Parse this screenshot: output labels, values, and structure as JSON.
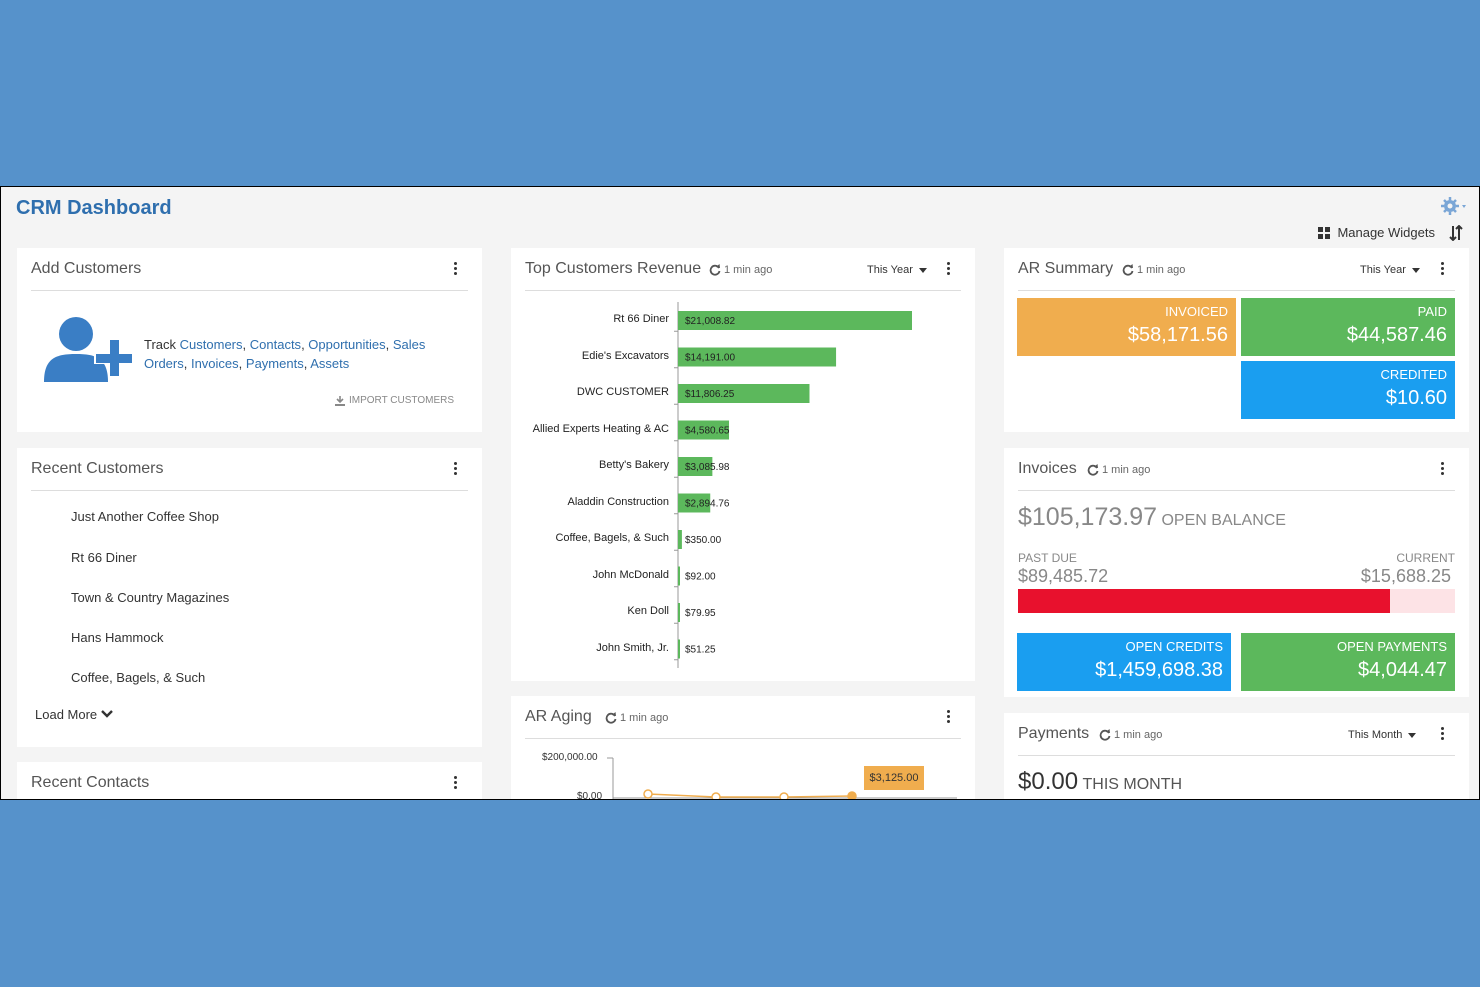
{
  "app": {
    "title": "CRM Dashboard",
    "manage_widgets": "Manage Widgets"
  },
  "colors": {
    "accent": "#2f6fae",
    "bg": "#5692cb",
    "bar_green": "#5cb85c",
    "orange": "#f0ad4e",
    "blue": "#1a9ef0",
    "red": "#e8112d"
  },
  "add_customers": {
    "title": "Add Customers",
    "track_word": "Track",
    "links": [
      "Customers",
      "Contacts",
      "Opportunities",
      "Sales Orders",
      "Invoices",
      "Payments",
      "Assets"
    ],
    "import_label": "IMPORT CUSTOMERS"
  },
  "recent_customers": {
    "title": "Recent Customers",
    "items": [
      "Just Another Coffee Shop",
      "Rt 66 Diner",
      "Town & Country Magazines",
      "Hans Hammock",
      "Coffee, Bagels, & Such"
    ],
    "load_more": "Load More"
  },
  "recent_contacts": {
    "title": "Recent Contacts"
  },
  "top_customers": {
    "title": "Top Customers Revenue",
    "refresh": "1 min ago",
    "period": "This Year"
  },
  "chart_data": {
    "type": "bar",
    "orientation": "horizontal",
    "categories": [
      "Rt 66 Diner",
      "Edie's Excavators",
      "DWC CUSTOMER",
      "Allied Experts Heating & AC",
      "Betty's Bakery",
      "Aladdin Construction",
      "Coffee, Bagels, & Such",
      "John McDonald",
      "Ken Doll",
      "John Smith, Jr."
    ],
    "values": [
      21008.82,
      14191.0,
      11806.25,
      4580.65,
      3085.98,
      2894.76,
      350.0,
      92.0,
      79.95,
      51.25
    ],
    "labels": [
      "$21,008.82",
      "$14,191.00",
      "$11,806.25",
      "$4,580.65",
      "$3,085.98",
      "$2,894.76",
      "$350.00",
      "$92.00",
      "$79.95",
      "$51.25"
    ],
    "xlim": [
      0,
      21008.82
    ]
  },
  "ar_aging": {
    "title": "AR Aging",
    "refresh": "1 min ago",
    "y_ticks": [
      "$200,000.00",
      "$0.00"
    ],
    "tooltip": "$3,125.00"
  },
  "ar_summary": {
    "title": "AR Summary",
    "refresh": "1 min ago",
    "period": "This Year",
    "invoiced_label": "INVOICED",
    "invoiced_value": "$58,171.56",
    "paid_label": "PAID",
    "paid_value": "$44,587.46",
    "credited_label": "CREDITED",
    "credited_value": "$10.60"
  },
  "invoices": {
    "title": "Invoices",
    "refresh": "1 min ago",
    "open_balance": "$105,173.97",
    "open_balance_label": "OPEN BALANCE",
    "past_due_label": "PAST DUE",
    "past_due_value": "$89,485.72",
    "current_label": "CURRENT",
    "current_value": "$15,688.25",
    "past_due_fraction": 0.851,
    "open_credits_label": "OPEN CREDITS",
    "open_credits_value": "$1,459,698.38",
    "open_payments_label": "OPEN PAYMENTS",
    "open_payments_value": "$4,044.47"
  },
  "payments": {
    "title": "Payments",
    "refresh": "1 min ago",
    "period": "This Month",
    "amount": "$0.00",
    "amount_label": "THIS MONTH"
  }
}
